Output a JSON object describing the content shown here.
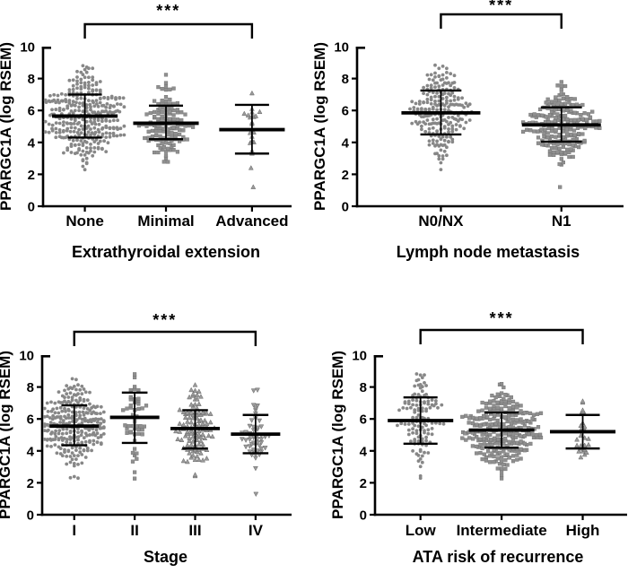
{
  "figure": {
    "description": "Four column scatter (dot) plots of PPARGC1A expression with mean and SD bars",
    "significance_label": "***",
    "marker_color": "#8d8d8d",
    "axis_color": "#000000"
  },
  "chart_data": [
    {
      "type": "scatter",
      "subtype": "column-scatter-mean-sd",
      "title": "",
      "xlabel": "Extrathyroidal extension",
      "ylabel": "PPARGC1A (log RSEM)",
      "ylim": [
        0,
        10
      ],
      "yticks": [
        0,
        2,
        4,
        6,
        8,
        10
      ],
      "grid": false,
      "significance": {
        "label": "***",
        "from": "None",
        "to": "Advanced"
      },
      "groups": [
        {
          "label": "None",
          "marker": "circle",
          "n": 330,
          "mean": 5.65,
          "sd_low": 4.3,
          "sd_high": 7.0,
          "min": 2.3,
          "max": 8.8,
          "low_outliers": []
        },
        {
          "label": "Minimal",
          "marker": "square",
          "n": 130,
          "mean": 5.2,
          "sd_low": 4.2,
          "sd_high": 6.3,
          "min": 2.75,
          "max": 8.2,
          "low_outliers": []
        },
        {
          "label": "Advanced",
          "marker": "triangle-up",
          "n": 19,
          "mean": 4.8,
          "sd_low": 3.3,
          "sd_high": 6.35,
          "min": 3.3,
          "max": 7.1,
          "low_outliers": [
            1.2,
            2.4
          ]
        }
      ]
    },
    {
      "type": "scatter",
      "subtype": "column-scatter-mean-sd",
      "title": "",
      "xlabel": "Lymph node metastasis",
      "ylabel": "PPARGC1A (log RSEM)",
      "ylim": [
        0,
        10
      ],
      "yticks": [
        0,
        2,
        4,
        6,
        8,
        10
      ],
      "grid": false,
      "significance": {
        "label": "***",
        "from": "N0/NX",
        "to": "N1"
      },
      "groups": [
        {
          "label": "N0/NX",
          "marker": "circle",
          "n": 225,
          "mean": 5.85,
          "sd_low": 4.5,
          "sd_high": 7.25,
          "min": 2.3,
          "max": 8.8,
          "low_outliers": []
        },
        {
          "label": "N1",
          "marker": "square",
          "n": 215,
          "mean": 5.1,
          "sd_low": 4.05,
          "sd_high": 6.2,
          "min": 2.6,
          "max": 7.8,
          "low_outliers": [
            1.2
          ]
        }
      ]
    },
    {
      "type": "scatter",
      "subtype": "column-scatter-mean-sd",
      "title": "",
      "xlabel": "Stage",
      "ylabel": "PPARGC1A (log RSEM)",
      "ylim": [
        0,
        10
      ],
      "yticks": [
        0,
        2,
        4,
        6,
        8,
        10
      ],
      "grid": false,
      "significance": {
        "label": "***",
        "from": "I",
        "to": "IV"
      },
      "groups": [
        {
          "label": "I",
          "marker": "circle",
          "n": 285,
          "mean": 5.55,
          "sd_low": 4.35,
          "sd_high": 6.85,
          "min": 2.3,
          "max": 8.5,
          "low_outliers": []
        },
        {
          "label": "II",
          "marker": "square",
          "n": 52,
          "mean": 6.1,
          "sd_low": 4.5,
          "sd_high": 7.65,
          "min": 2.3,
          "max": 8.8,
          "low_outliers": []
        },
        {
          "label": "III",
          "marker": "triangle-up",
          "n": 110,
          "mean": 5.4,
          "sd_low": 4.15,
          "sd_high": 6.55,
          "min": 2.4,
          "max": 8.1,
          "low_outliers": []
        },
        {
          "label": "IV",
          "marker": "triangle-down",
          "n": 54,
          "mean": 5.05,
          "sd_low": 3.85,
          "sd_high": 6.25,
          "min": 2.9,
          "max": 7.8,
          "low_outliers": [
            1.3
          ]
        }
      ]
    },
    {
      "type": "scatter",
      "subtype": "column-scatter-mean-sd",
      "title": "",
      "xlabel": "ATA risk of recurrence",
      "ylabel": "PPARGC1A (log RSEM)",
      "ylim": [
        0,
        10
      ],
      "yticks": [
        0,
        2,
        4,
        6,
        8,
        10
      ],
      "grid": false,
      "significance": {
        "label": "***",
        "from": "Low",
        "to": "High"
      },
      "groups": [
        {
          "label": "Low",
          "marker": "circle",
          "n": 122,
          "mean": 5.9,
          "sd_low": 4.45,
          "sd_high": 7.35,
          "min": 2.3,
          "max": 8.8,
          "low_outliers": []
        },
        {
          "label": "Intermediate",
          "marker": "square",
          "n": 275,
          "mean": 5.3,
          "sd_low": 4.2,
          "sd_high": 6.4,
          "min": 2.3,
          "max": 8.2,
          "low_outliers": []
        },
        {
          "label": "High",
          "marker": "triangle-up",
          "n": 26,
          "mean": 5.2,
          "sd_low": 4.15,
          "sd_high": 6.25,
          "min": 3.6,
          "max": 7.1,
          "low_outliers": []
        }
      ]
    }
  ]
}
